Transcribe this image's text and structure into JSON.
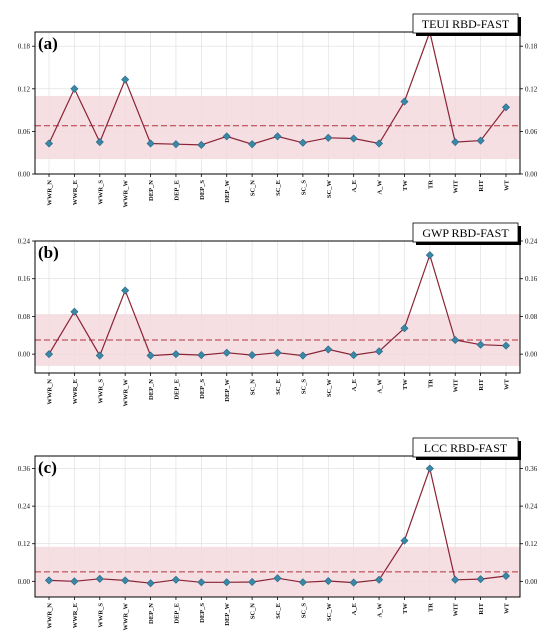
{
  "figure": {
    "colors": {
      "line": "#8b2335",
      "marker": "#3a88a8",
      "marker_edge": "#2a6680",
      "band": "#f3d9dd",
      "mean_line": "#b5323f",
      "grid": "#dddddd",
      "title_shadow": "#000000"
    }
  },
  "chart_data": [
    {
      "type": "line",
      "panel_label": "(a)",
      "title": "TEUI RBD-FAST",
      "categories": [
        "WWR_N",
        "WWR_E",
        "WWR_S",
        "WWR_W",
        "DEP_N",
        "DEP_E",
        "DEP_S",
        "DEP_W",
        "SC_N",
        "SC_E",
        "SC_S",
        "SC_W",
        "A_E",
        "A_W",
        "TW",
        "TR",
        "WIT",
        "RIT",
        "WT"
      ],
      "values": [
        0.043,
        0.12,
        0.045,
        0.133,
        0.043,
        0.042,
        0.041,
        0.053,
        0.042,
        0.053,
        0.044,
        0.051,
        0.05,
        0.043,
        0.102,
        0.2,
        0.045,
        0.047,
        0.094
      ],
      "mean": 0.068,
      "band": [
        0.021,
        0.11
      ],
      "ylim": [
        0.0,
        0.2
      ],
      "yticks": [
        "0.00",
        "0.06",
        "0.12",
        "0.18"
      ],
      "ytick_values": [
        0.0,
        0.06,
        0.12,
        0.18
      ],
      "grid": true
    },
    {
      "type": "line",
      "panel_label": "(b)",
      "title": "GWP RBD-FAST",
      "categories": [
        "WWR_N",
        "WWR_E",
        "WWR_S",
        "WWR_W",
        "DEP_N",
        "DEP_E",
        "DEP_S",
        "DEP_W",
        "SC_N",
        "SC_E",
        "SC_S",
        "SC_W",
        "A_E",
        "A_W",
        "TW",
        "TR",
        "WIT",
        "RIT",
        "WT"
      ],
      "values": [
        0.0,
        0.09,
        -0.003,
        0.135,
        -0.003,
        0.0,
        -0.002,
        0.003,
        -0.002,
        0.003,
        -0.003,
        0.01,
        -0.002,
        0.006,
        0.055,
        0.21,
        0.03,
        0.02,
        0.018
      ],
      "mean": 0.03,
      "band": [
        -0.025,
        0.085
      ],
      "ylim": [
        -0.04,
        0.24
      ],
      "yticks": [
        "0.00",
        "0.08",
        "0.16",
        "0.24"
      ],
      "ytick_values": [
        0.0,
        0.08,
        0.16,
        0.24
      ],
      "grid": true
    },
    {
      "type": "line",
      "panel_label": "(c)",
      "title": "LCC RBD-FAST",
      "categories": [
        "WWR_N",
        "WWR_E",
        "WWR_S",
        "WWR_W",
        "DEP_N",
        "DEP_E",
        "DEP_S",
        "DEP_W",
        "SC_N",
        "SC_E",
        "SC_S",
        "SC_W",
        "A_E",
        "A_W",
        "TW",
        "TR",
        "WIT",
        "RIT",
        "WT"
      ],
      "values": [
        0.003,
        0.0,
        0.008,
        0.003,
        -0.006,
        0.005,
        -0.003,
        -0.003,
        -0.002,
        0.01,
        -0.003,
        0.001,
        -0.004,
        0.005,
        0.13,
        0.36,
        0.005,
        0.007,
        0.017
      ],
      "mean": 0.03,
      "band": [
        -0.05,
        0.11
      ],
      "ylim": [
        -0.05,
        0.4
      ],
      "yticks": [
        "0.00",
        "0.12",
        "0.24",
        "0.36"
      ],
      "ytick_values": [
        0.0,
        0.12,
        0.24,
        0.36
      ],
      "grid": true
    }
  ]
}
